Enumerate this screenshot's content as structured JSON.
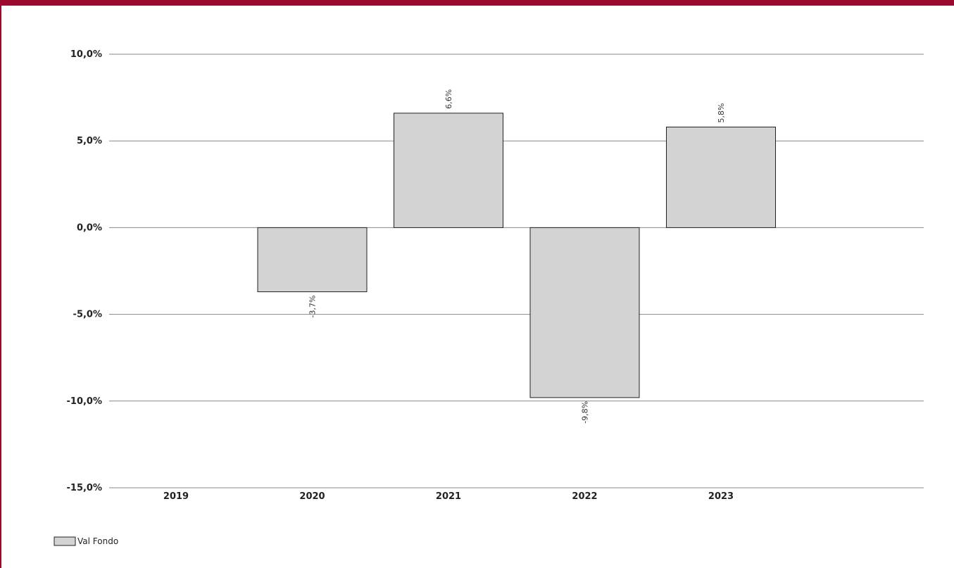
{
  "chart_data": {
    "type": "bar",
    "categories": [
      "2019",
      "2020",
      "2021",
      "2022",
      "2023"
    ],
    "series": [
      {
        "name": "Val Fondo",
        "values": [
          null,
          -3.7,
          6.6,
          -9.8,
          5.8
        ],
        "labels": [
          "",
          "-3,7%",
          "6,6%",
          "-9,8%",
          "5,8%"
        ]
      }
    ],
    "y_ticks": [
      {
        "value": 10,
        "label": "10,0%"
      },
      {
        "value": 5,
        "label": "5,0%"
      },
      {
        "value": 0,
        "label": "0,0%"
      },
      {
        "value": -5,
        "label": "-5,0%"
      },
      {
        "value": -10,
        "label": "-10,0%"
      },
      {
        "value": -15,
        "label": "-15,0%"
      }
    ],
    "ylim": [
      -15,
      10
    ],
    "grid": true,
    "legend": "bottom-left",
    "title": "",
    "xlabel": "",
    "ylabel": ""
  },
  "colors": {
    "accent": "#9b0a2e",
    "bar_fill": "#d3d3d3",
    "bar_stroke": "#222222",
    "grid": "#888888"
  }
}
